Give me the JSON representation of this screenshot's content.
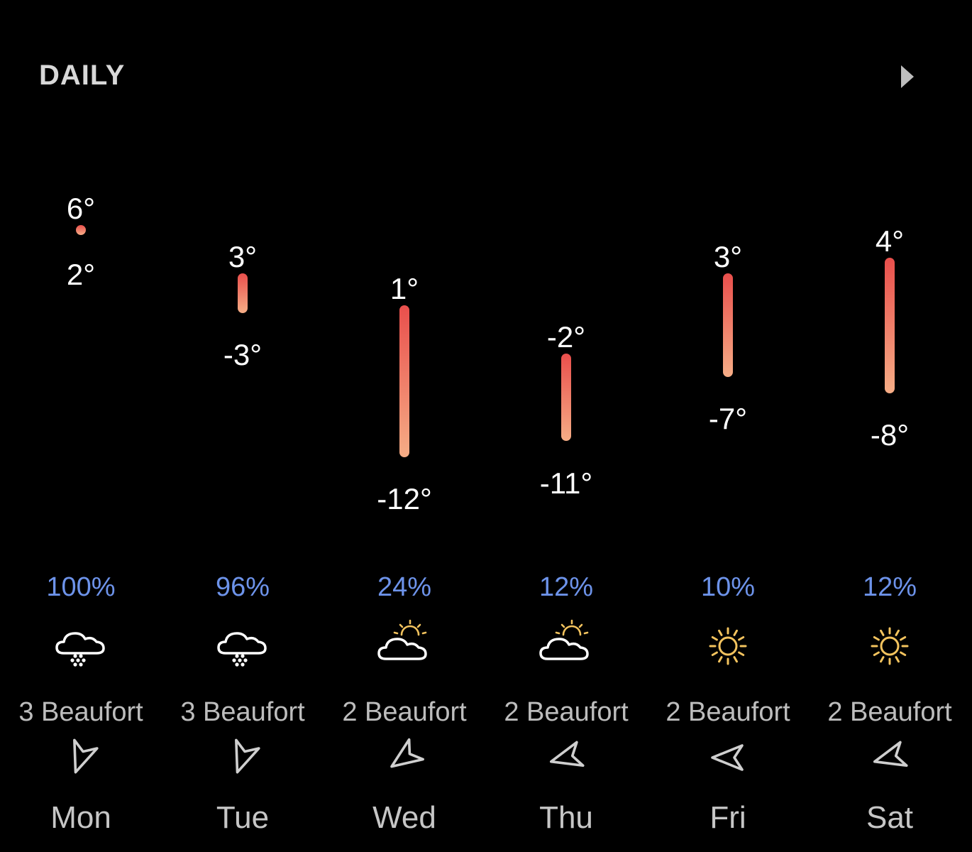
{
  "header": {
    "title": "DAILY"
  },
  "colors": {
    "precip": "#6d93ea",
    "bar_top": "#e94f4c",
    "bar_bottom": "#f6ad86",
    "sun": "#f3c35e",
    "icon_line": "#ffffff",
    "wind_arrow": "#cfcfcf"
  },
  "days": [
    {
      "day": "Mon",
      "high": "6°",
      "low": "2°",
      "high_value": 6,
      "low_value": 2,
      "precip": "100%",
      "icon": "cloud-snow-icon",
      "wind": "3 Beaufort",
      "wind_direction_deg": 20
    },
    {
      "day": "Tue",
      "high": "3°",
      "low": "-3°",
      "high_value": 3,
      "low_value": -3,
      "precip": "96%",
      "icon": "cloud-snow-icon",
      "wind": "3 Beaufort",
      "wind_direction_deg": 20
    },
    {
      "day": "Wed",
      "high": "1°",
      "low": "-12°",
      "high_value": 1,
      "low_value": -12,
      "precip": "24%",
      "icon": "partly-cloudy-icon",
      "wind": "2 Beaufort",
      "wind_direction_deg": 55
    },
    {
      "day": "Thu",
      "high": "-2°",
      "low": "-11°",
      "high_value": -2,
      "low_value": -11,
      "precip": "12%",
      "icon": "partly-cloudy-icon",
      "wind": "2 Beaufort",
      "wind_direction_deg": 75
    },
    {
      "day": "Fri",
      "high": "3°",
      "low": "-7°",
      "high_value": 3,
      "low_value": -7,
      "precip": "10%",
      "icon": "sun-icon",
      "wind": "2 Beaufort",
      "wind_direction_deg": 90
    },
    {
      "day": "Sat",
      "high": "4°",
      "low": "-8°",
      "high_value": 4,
      "low_value": -8,
      "precip": "12%",
      "icon": "sun-icon",
      "wind": "2 Beaufort",
      "wind_direction_deg": 75
    }
  ]
}
